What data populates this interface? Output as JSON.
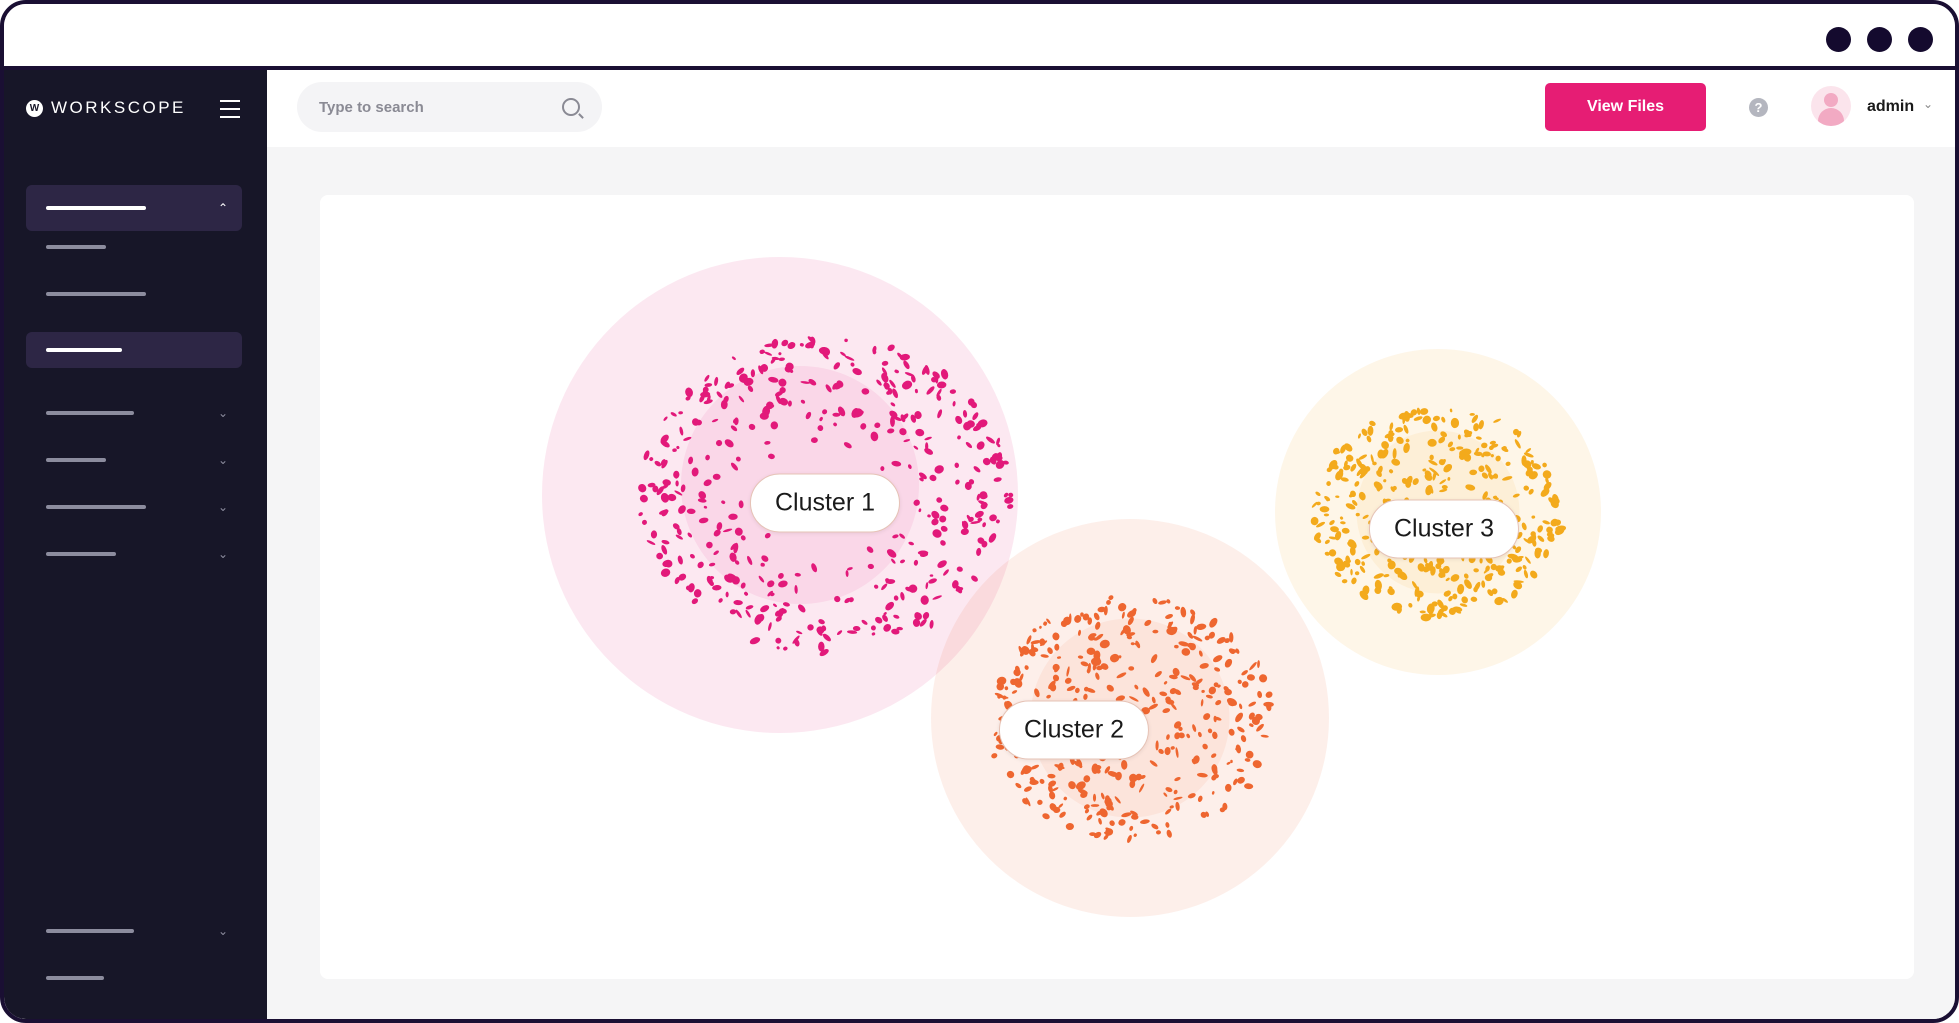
{
  "window": {
    "controls": [
      "dot",
      "dot",
      "dot"
    ]
  },
  "sidebar": {
    "brand": "WORKSCOPE",
    "groups": [
      {
        "expanded": true,
        "active": true,
        "children": [
          {
            "active": false
          },
          {
            "active": false
          },
          {
            "active": true
          }
        ]
      },
      {
        "expanded": false
      },
      {
        "expanded": false
      },
      {
        "expanded": false
      },
      {
        "expanded": false
      }
    ],
    "bottom": [
      {
        "expanded": false
      },
      {}
    ]
  },
  "header": {
    "search_placeholder": "Type to search",
    "view_files_label": "View Files",
    "help_icon": "?",
    "user_name": "admin"
  },
  "clusters": [
    {
      "label": "Cluster 1",
      "color": "#e2197a"
    },
    {
      "label": "Cluster 2",
      "color": "#ee6630"
    },
    {
      "label": "Cluster 3",
      "color": "#f3aa1c"
    }
  ],
  "icons": {
    "up": "⌃",
    "down": "⌄",
    "search": "search-icon",
    "menu": "hamburger-icon"
  }
}
